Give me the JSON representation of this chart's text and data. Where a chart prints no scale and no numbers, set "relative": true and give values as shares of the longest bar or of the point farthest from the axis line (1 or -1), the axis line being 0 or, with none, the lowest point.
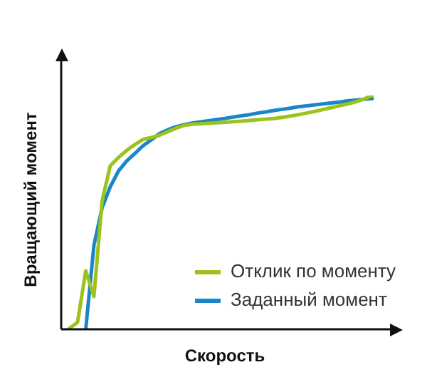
{
  "chart_data": {
    "type": "line",
    "relative": true,
    "xlabel": "Скорость",
    "ylabel": "Вращающий момент",
    "legend": "bottom right",
    "marker": "none",
    "line_style": "solid",
    "categories": [
      null,
      null,
      null,
      null,
      null,
      null,
      null,
      null,
      null,
      null,
      null,
      null,
      null,
      null,
      null,
      null,
      null,
      null,
      null,
      null,
      null,
      null,
      null,
      null,
      null,
      null,
      null,
      null,
      null,
      null,
      null,
      null,
      null,
      null,
      null,
      null,
      null,
      null,
      null,
      null,
      null
    ],
    "series": [
      {
        "name": "Отклик по моменту",
        "color": "#9bc31c",
        "values": [
          null,
          0.004,
          0.03,
          0.25,
          0.14,
          0.55,
          0.7,
          0.735,
          0.765,
          0.79,
          0.812,
          0.82,
          0.83,
          0.845,
          0.86,
          0.872,
          0.877,
          0.879,
          0.881,
          0.883,
          0.886,
          0.888,
          0.89,
          0.893,
          0.896,
          0.899,
          0.902,
          0.906,
          0.912,
          0.918,
          0.925,
          0.932,
          0.94,
          0.948,
          0.956,
          0.964,
          0.973,
          0.985,
          1.0,
          null,
          null
        ]
      },
      {
        "name": "Заданный момент",
        "color": "#1a86c8",
        "values": [
          null,
          null,
          null,
          0.0,
          0.36,
          0.52,
          0.61,
          0.677,
          0.72,
          0.752,
          0.785,
          0.81,
          0.837,
          0.853,
          0.866,
          0.875,
          0.882,
          0.887,
          0.892,
          0.897,
          0.902,
          0.908,
          0.913,
          0.918,
          0.925,
          0.93,
          0.936,
          0.941,
          0.946,
          0.952,
          0.956,
          0.96,
          0.964,
          0.968,
          0.972,
          0.977,
          0.98,
          0.984,
          0.987,
          null,
          null
        ]
      }
    ]
  }
}
